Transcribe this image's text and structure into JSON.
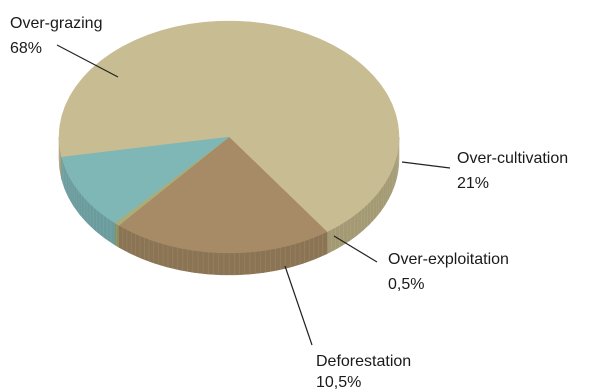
{
  "chart_data": {
    "type": "pie",
    "title": "",
    "categories": [
      "Over-grazing",
      "Over-cultivation",
      "Over-exploitation",
      "Deforestation"
    ],
    "values": [
      68,
      21,
      0.5,
      10.5
    ],
    "value_labels": [
      "68%",
      "21%",
      "0,5%",
      "10,5%"
    ],
    "colors": [
      "#c8bd92",
      "#a78b66",
      "#a9ad7a",
      "#7fb6b6"
    ],
    "side_colors": [
      "#a39973",
      "#8b7453",
      "#8b8f60",
      "#6a9c9e"
    ],
    "start_angle_deg": 170,
    "legend": "none"
  }
}
